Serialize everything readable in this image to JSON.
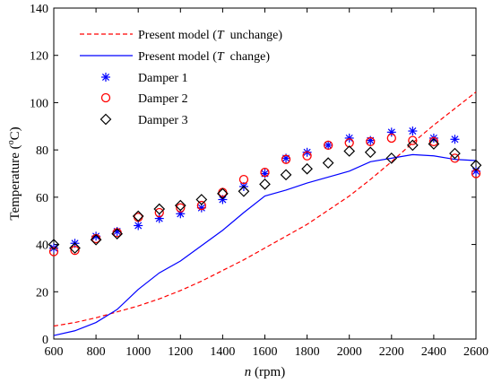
{
  "chart_data": {
    "type": "line",
    "xlabel_italic": "n",
    "xlabel_rest": " (rpm)",
    "ylabel_pre": "Temperature (",
    "ylabel_sup": "o",
    "ylabel_post": "C)",
    "xlim": [
      600,
      2600
    ],
    "ylim": [
      0,
      140
    ],
    "xticks": [
      600,
      800,
      1000,
      1200,
      1400,
      1600,
      1800,
      2000,
      2200,
      2400,
      2600
    ],
    "yticks": [
      0,
      20,
      40,
      60,
      80,
      100,
      120,
      140
    ],
    "legend_position": "top-left",
    "grid": false,
    "series": [
      {
        "name_pre": "Present model (",
        "name_var": "T",
        "name_post": "  unchange)",
        "style": "dashed-line",
        "color": "#ff0000",
        "x": [
          600,
          700,
          800,
          900,
          1000,
          1100,
          1200,
          1300,
          1400,
          1500,
          1600,
          1700,
          1800,
          1900,
          2000,
          2100,
          2200,
          2300,
          2400,
          2500,
          2600
        ],
        "y": [
          5.5,
          7,
          9,
          11.5,
          14,
          17,
          20.5,
          24.5,
          29,
          33.5,
          38.5,
          43.5,
          48.5,
          54.5,
          60.5,
          67.5,
          75,
          83,
          90.5,
          97.5,
          104.5
        ]
      },
      {
        "name_pre": "Present model (",
        "name_var": "T",
        "name_post": "  change)",
        "style": "solid-line",
        "color": "#0000ff",
        "x": [
          600,
          700,
          800,
          900,
          1000,
          1100,
          1200,
          1300,
          1400,
          1500,
          1600,
          1700,
          1800,
          1900,
          2000,
          2100,
          2200,
          2300,
          2400,
          2500,
          2600
        ],
        "y": [
          1.5,
          3.5,
          7,
          12.5,
          21,
          28,
          33,
          39.5,
          46,
          53.5,
          60.5,
          63,
          66,
          68.5,
          71,
          75,
          76.5,
          78,
          77.5,
          76,
          75.5
        ]
      },
      {
        "name": "Damper 1",
        "style": "asterisk",
        "color": "#0000ff",
        "x": [
          600,
          700,
          800,
          900,
          1000,
          1100,
          1200,
          1300,
          1400,
          1500,
          1600,
          1700,
          1800,
          1900,
          2000,
          2100,
          2200,
          2300,
          2400,
          2500,
          2600
        ],
        "y": [
          38.5,
          40.5,
          43.5,
          45.5,
          48,
          51,
          53,
          55.5,
          59,
          64.5,
          70,
          76.5,
          79,
          82,
          85,
          84,
          87.5,
          88,
          85,
          84.5,
          71
        ]
      },
      {
        "name": "Damper 2",
        "style": "circle",
        "color": "#ff0000",
        "x": [
          600,
          700,
          800,
          900,
          1000,
          1100,
          1200,
          1300,
          1400,
          1500,
          1600,
          1700,
          1800,
          1900,
          2000,
          2100,
          2200,
          2300,
          2400,
          2500,
          2600
        ],
        "y": [
          37,
          37.5,
          42.5,
          45,
          51.5,
          53.5,
          55.5,
          56.5,
          62,
          67.5,
          70.5,
          76,
          77.5,
          82,
          83,
          83.5,
          85,
          84,
          83.5,
          76.5,
          70
        ]
      },
      {
        "name": "Damper 3",
        "style": "diamond",
        "color": "#000000",
        "x": [
          600,
          700,
          800,
          900,
          1000,
          1100,
          1200,
          1300,
          1400,
          1500,
          1600,
          1700,
          1800,
          1900,
          2000,
          2100,
          2200,
          2300,
          2400,
          2500,
          2600
        ],
        "y": [
          40,
          38.5,
          42,
          44.5,
          52,
          55,
          56.5,
          59,
          61.5,
          62.5,
          65.5,
          69.5,
          72,
          74.5,
          79.5,
          79,
          76.5,
          82,
          82.5,
          78.5,
          73.5
        ]
      }
    ]
  }
}
